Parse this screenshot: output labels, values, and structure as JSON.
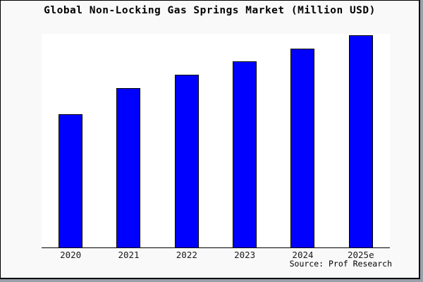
{
  "chart_data": {
    "type": "bar",
    "title": "Global Non-Locking Gas Springs Market (Million USD)",
    "categories": [
      "2020",
      "2021",
      "2022",
      "2023",
      "2024",
      "2025e"
    ],
    "values": [
      189,
      226,
      245,
      264,
      282,
      301
    ],
    "value_scale": "relative bar heights (no numeric y-axis labels shown in chart)",
    "xlabel": "",
    "ylabel": "",
    "ylim": [
      0,
      304
    ],
    "grid": false,
    "legend_position": "none"
  },
  "source": {
    "text": "Source: Prof Research"
  },
  "colors": {
    "bar_fill": "#0000ff",
    "bar_border": "#000000",
    "plot_background": "#ffffff",
    "frame_background": "#f9f9f9",
    "axis_line": "#000000",
    "text": "#000000"
  }
}
